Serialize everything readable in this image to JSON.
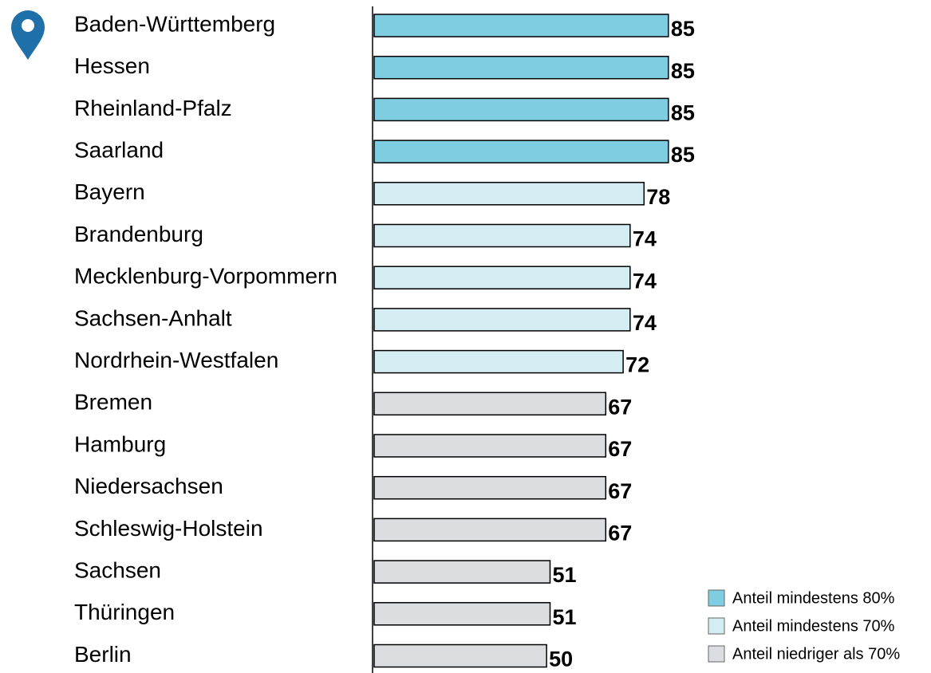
{
  "chart_data": {
    "type": "bar",
    "orientation": "horizontal",
    "categories": [
      "Baden-Württemberg",
      "Hessen",
      "Rheinland-Pfalz",
      "Saarland",
      "Bayern",
      "Brandenburg",
      "Mecklenburg-Vorpommern",
      "Sachsen-Anhalt",
      "Nordrhein-Westfalen",
      "Bremen",
      "Hamburg",
      "Niedersachsen",
      "Schleswig-Holstein",
      "Sachsen",
      "Thüringen",
      "Berlin"
    ],
    "values": [
      85,
      85,
      85,
      85,
      78,
      74,
      74,
      74,
      72,
      67,
      67,
      67,
      67,
      51,
      51,
      50
    ],
    "colors": [
      "#7ecde0",
      "#7ecde0",
      "#7ecde0",
      "#7ecde0",
      "#d3edf2",
      "#d3edf2",
      "#d3edf2",
      "#d3edf2",
      "#d3edf2",
      "#dcdde1",
      "#dcdde1",
      "#dcdde1",
      "#dcdde1",
      "#dcdde1",
      "#dcdde1",
      "#dcdde1"
    ],
    "xlim": [
      0,
      160
    ],
    "legend": [
      {
        "name": "Anteil mindestens 80%",
        "color": "#7ecde0"
      },
      {
        "name": "Anteil mindestens 70%",
        "color": "#d3edf2"
      },
      {
        "name": "Anteil niedriger als 70%",
        "color": "#dcdde1"
      }
    ],
    "legend_position": "lower right"
  }
}
